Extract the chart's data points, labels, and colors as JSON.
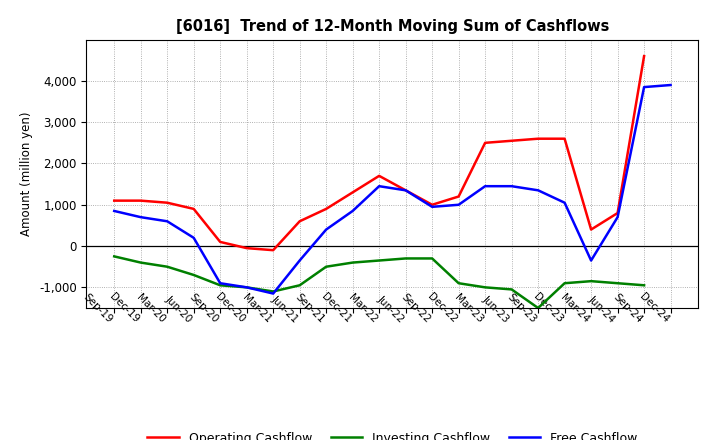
{
  "title": "[6016]  Trend of 12-Month Moving Sum of Cashflows",
  "ylabel": "Amount (million yen)",
  "x_labels": [
    "Sep-19",
    "Dec-19",
    "Mar-20",
    "Jun-20",
    "Sep-20",
    "Dec-20",
    "Mar-21",
    "Jun-21",
    "Sep-21",
    "Dec-21",
    "Mar-22",
    "Jun-22",
    "Sep-22",
    "Dec-22",
    "Mar-23",
    "Jun-23",
    "Sep-23",
    "Dec-23",
    "Mar-24",
    "Jun-24",
    "Sep-24",
    "Dec-24"
  ],
  "operating": [
    1100,
    1100,
    1050,
    900,
    100,
    -50,
    -100,
    600,
    900,
    1300,
    1700,
    1350,
    1000,
    1200,
    2500,
    2550,
    2600,
    2600,
    400,
    800,
    4600,
    null
  ],
  "investing": [
    -250,
    -400,
    -500,
    -700,
    -950,
    -1000,
    -1100,
    -950,
    -500,
    -400,
    -350,
    -300,
    -300,
    -900,
    -1000,
    -1050,
    -1500,
    -900,
    -850,
    -900,
    -950,
    null
  ],
  "free": [
    850,
    700,
    600,
    200,
    -900,
    -1000,
    -1150,
    -350,
    400,
    850,
    1450,
    1350,
    950,
    1000,
    1450,
    1450,
    1350,
    1050,
    -350,
    700,
    3850,
    3900
  ],
  "operating_color": "#ff0000",
  "investing_color": "#008000",
  "free_color": "#0000ff",
  "ylim": [
    -1500,
    5000
  ],
  "yticks": [
    -1000,
    0,
    1000,
    2000,
    3000,
    4000
  ],
  "background_color": "#ffffff",
  "grid_color": "#999999"
}
